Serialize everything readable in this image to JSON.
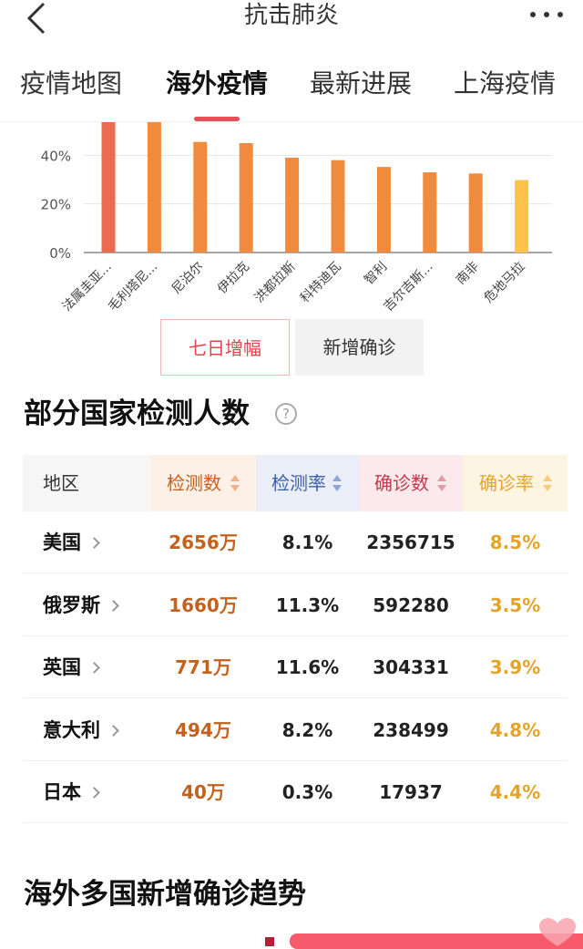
{
  "header": {
    "title": "抗击肺炎"
  },
  "tabs": [
    {
      "label": "疫情地图"
    },
    {
      "label": "海外疫情"
    },
    {
      "label": "最新进展"
    },
    {
      "label": "上海疫情"
    }
  ],
  "chart_data": {
    "type": "bar",
    "categories": [
      "法属圭亚...",
      "毛利塔尼...",
      "尼泊尔",
      "伊拉克",
      "洪都拉斯",
      "科特迪瓦",
      "智利",
      "吉尔吉斯...",
      "南非",
      "危地马拉"
    ],
    "values": [
      54.5,
      54.5,
      45.5,
      45,
      39,
      38,
      35.2,
      33,
      32.5,
      29.8
    ],
    "colors": [
      "#ec6b50",
      "#f08a3c",
      "#f08a3c",
      "#f08a3c",
      "#f08a3c",
      "#f08a3c",
      "#f08a3c",
      "#f08a3c",
      "#f08a3c",
      "#fcc24a"
    ],
    "yticks": [
      "0%",
      "20%",
      "40%"
    ],
    "ylim": [
      0,
      60
    ],
    "grid": true
  },
  "toggles": {
    "active": "七日增幅",
    "inactive": "新增确诊"
  },
  "testing": {
    "title": "部分国家检测人数",
    "help": "?",
    "columns": [
      "地区",
      "检测数",
      "检测率",
      "确诊数",
      "确诊率"
    ],
    "rows": [
      {
        "country": "美国",
        "tests": "2656万",
        "rate": "8.1%",
        "confirmed": "2356715",
        "confirm_rate": "8.5%"
      },
      {
        "country": "俄罗斯",
        "tests": "1660万",
        "rate": "11.3%",
        "confirmed": "592280",
        "confirm_rate": "3.5%"
      },
      {
        "country": "英国",
        "tests": "771万",
        "rate": "11.6%",
        "confirmed": "304331",
        "confirm_rate": "3.9%"
      },
      {
        "country": "意大利",
        "tests": "494万",
        "rate": "8.2%",
        "confirmed": "238499",
        "confirm_rate": "4.8%"
      },
      {
        "country": "日本",
        "tests": "40万",
        "rate": "0.3%",
        "confirmed": "17937",
        "confirm_rate": "4.4%"
      }
    ]
  },
  "trend": {
    "title": "海外多国新增确诊趋势"
  },
  "colors": {
    "accent_red": "#e8505b",
    "tests_orange": "#c2621e",
    "rate_blue": "#3b5fa8",
    "confirmed_red": "#c03a4e",
    "confirm_rate_gold": "#e4a42a"
  }
}
